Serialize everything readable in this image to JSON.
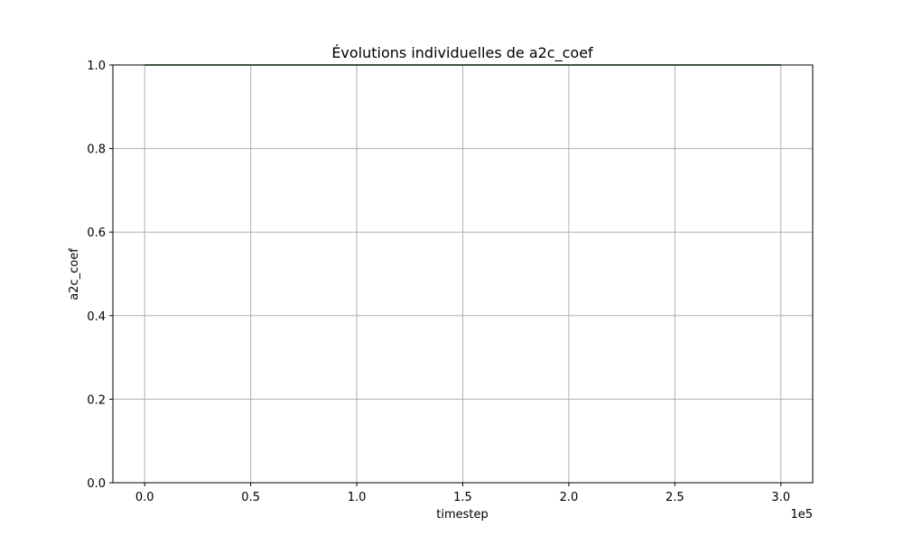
{
  "chart_data": {
    "type": "line",
    "title": "Évolutions individuelles de a2c_coef",
    "xlabel": "timestep",
    "ylabel": "a2c_coef",
    "x_offset_label": "1e5",
    "xlim": [
      -15000,
      315000
    ],
    "ylim": [
      0,
      1
    ],
    "x_ticks": [
      0,
      50000,
      100000,
      150000,
      200000,
      250000,
      300000
    ],
    "x_tick_labels": [
      "0.0",
      "0.5",
      "1.0",
      "1.5",
      "2.0",
      "2.5",
      "3.0"
    ],
    "y_ticks": [
      0,
      0.2,
      0.4,
      0.6,
      0.8,
      1.0
    ],
    "y_tick_labels": [
      "0.0",
      "0.2",
      "0.4",
      "0.6",
      "0.8",
      "1.0"
    ],
    "grid": true,
    "series": [
      {
        "x": [
          0,
          300000
        ],
        "y": [
          1.0,
          1.0
        ],
        "color": "#1a5c1a"
      }
    ]
  }
}
